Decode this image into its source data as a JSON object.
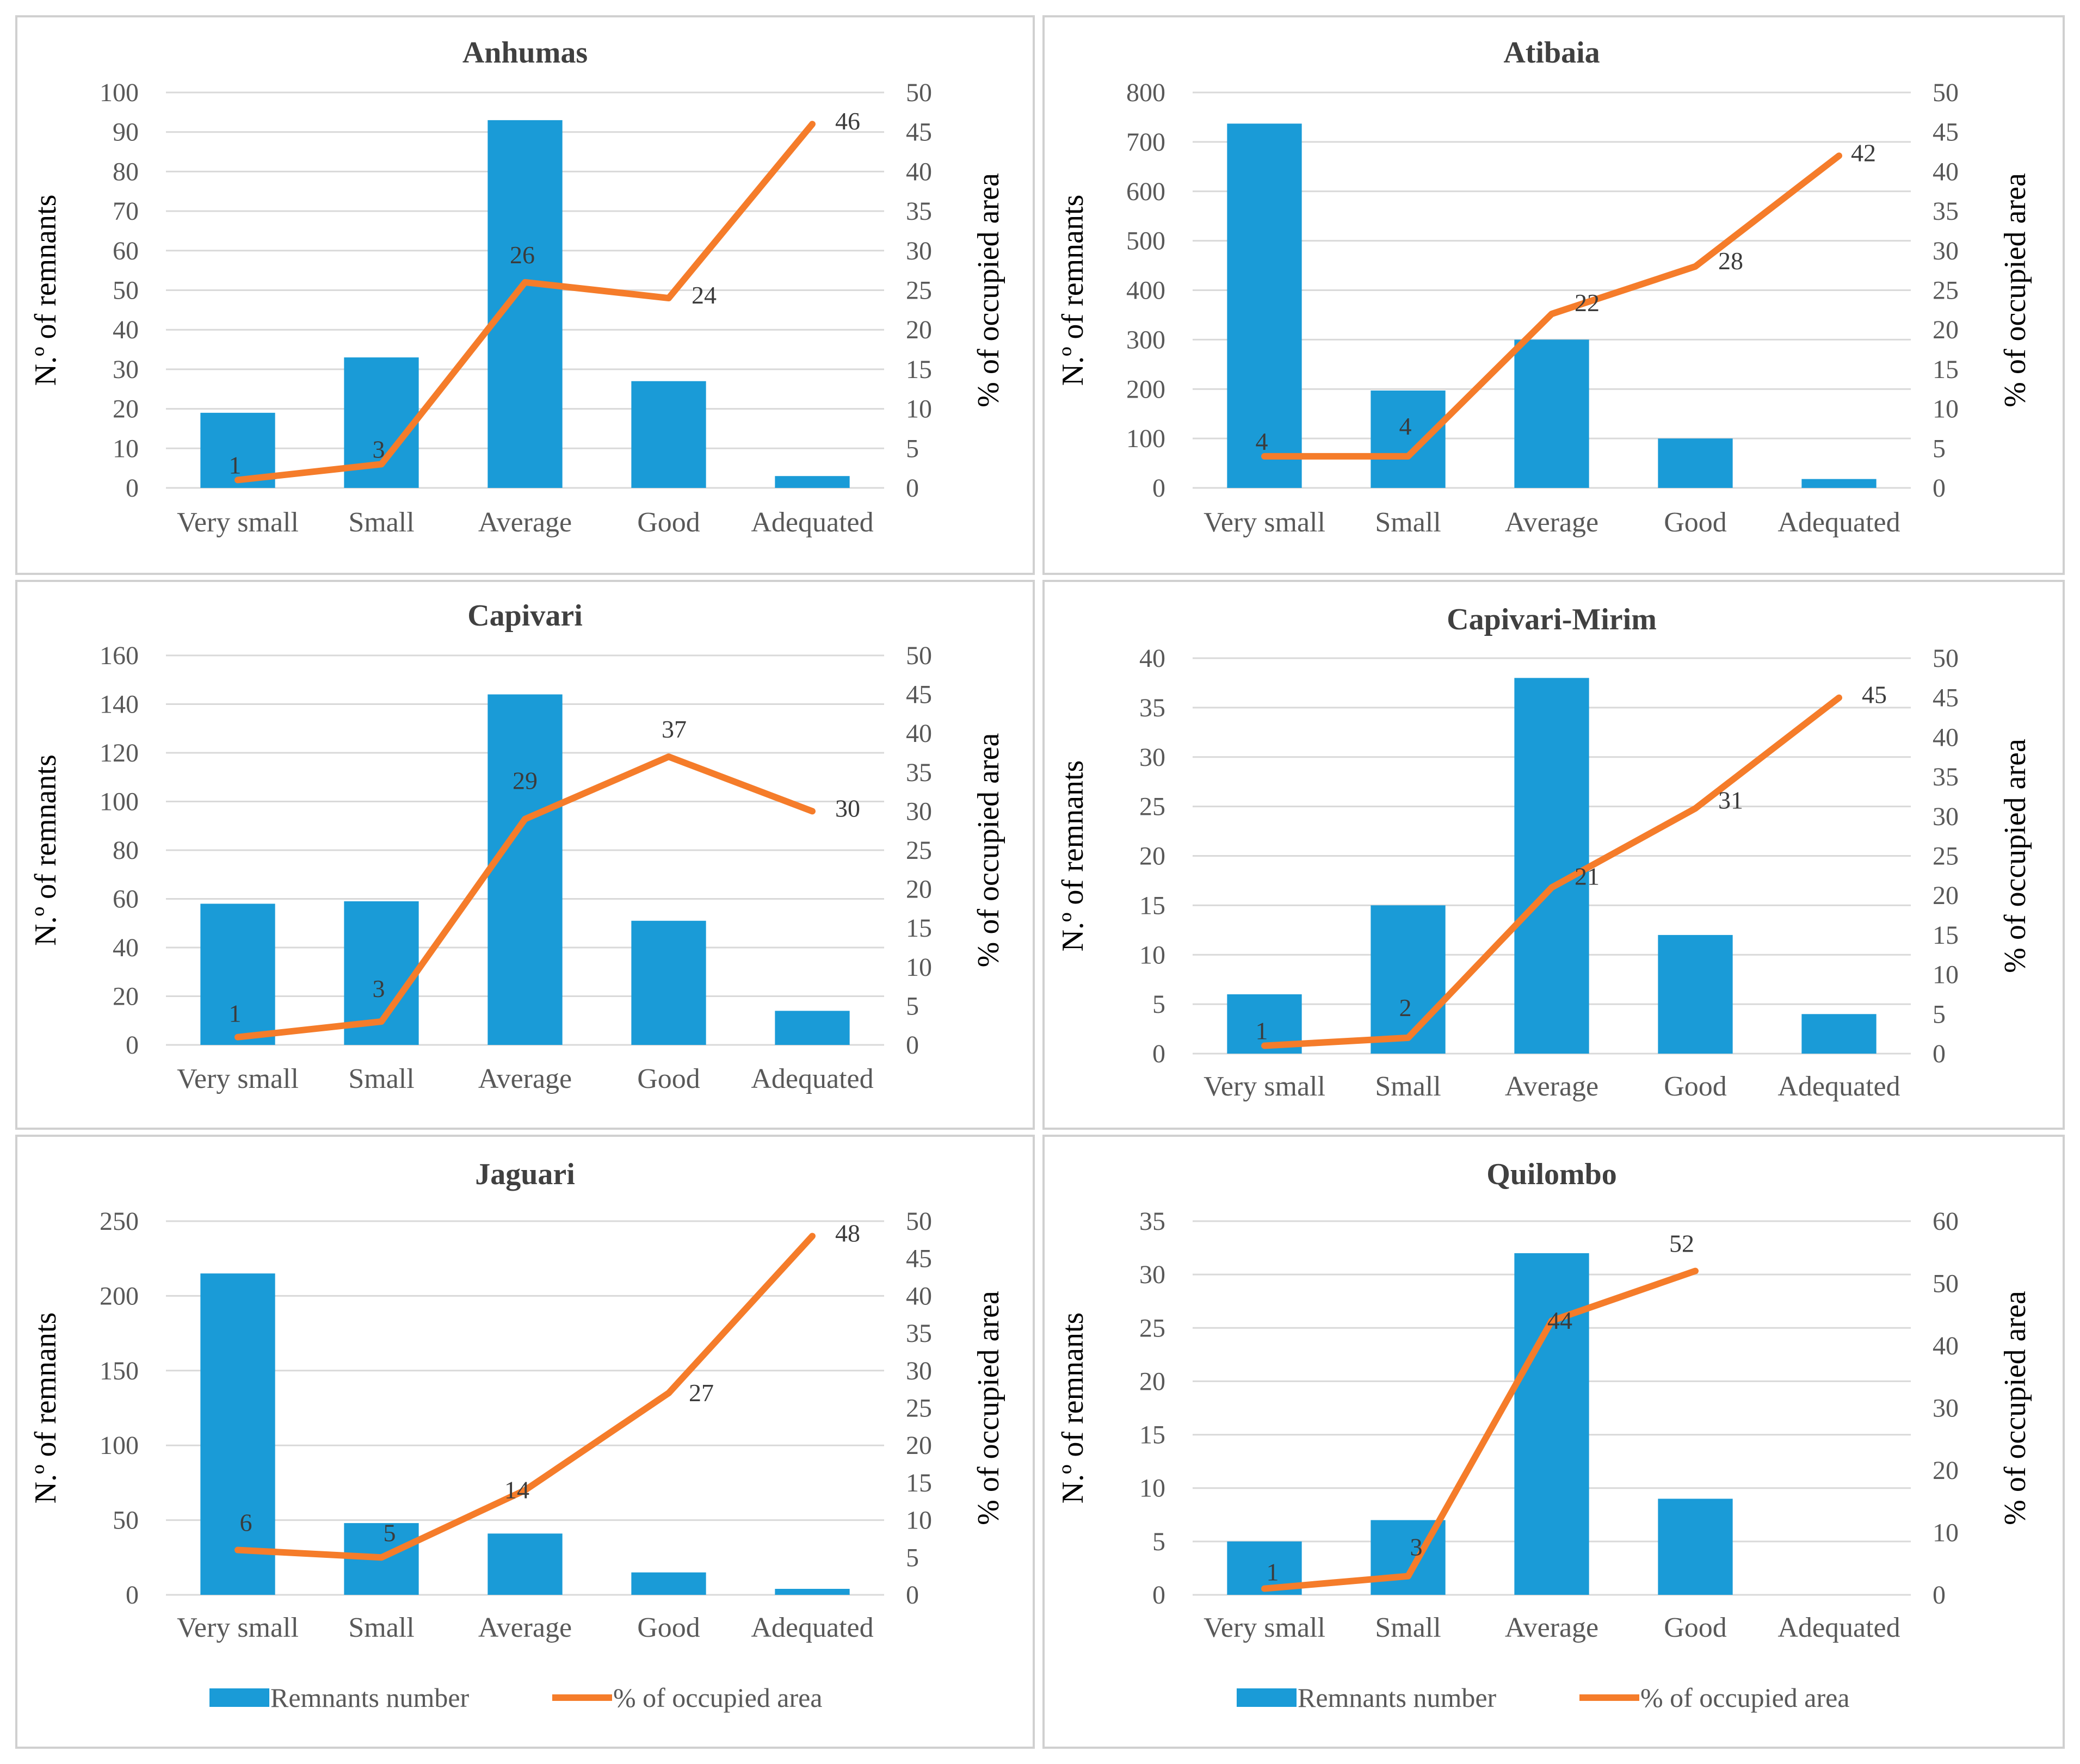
{
  "colors": {
    "bar": "#1a9bd7",
    "line": "#f57c2a",
    "grid": "#d9d9d9",
    "frame": "#d0d0d0",
    "axis_text": "#595959",
    "title_text": "#404040",
    "label_text": "#3b3b3b",
    "ylabel_text": "#000000"
  },
  "legend": {
    "bar_label": "Remnants number",
    "line_label": "% of occupied area"
  },
  "chart_data": [
    {
      "type": "bar",
      "title": "Anhumas",
      "categories": [
        "Very small",
        "Small",
        "Average",
        "Good",
        "Adequated"
      ],
      "ylabel": "N.º of remnants",
      "y2label": "% of occupied area",
      "ylim": [
        0,
        100
      ],
      "yticks": [
        0,
        10,
        20,
        30,
        40,
        50,
        60,
        70,
        80,
        90,
        100
      ],
      "y2lim": [
        0,
        50
      ],
      "y2ticks": [
        0,
        5,
        10,
        15,
        20,
        25,
        30,
        35,
        40,
        45,
        50
      ],
      "series": [
        {
          "name": "Remnants number",
          "kind": "bar",
          "axis": "left",
          "values": [
            19,
            33,
            93,
            27,
            3
          ]
        },
        {
          "name": "% of occupied area",
          "kind": "line",
          "axis": "right",
          "values": [
            1,
            3,
            26,
            24,
            46
          ],
          "labels": [
            "1",
            "3",
            "26",
            "24",
            "46"
          ]
        }
      ],
      "legend": false
    },
    {
      "type": "bar",
      "title": "Atibaia",
      "categories": [
        "Very small",
        "Small",
        "Average",
        "Good",
        "Adequated"
      ],
      "ylabel": "N.º of remnants",
      "y2label": "% of occupied area",
      "ylim": [
        0,
        800
      ],
      "yticks": [
        0,
        100,
        200,
        300,
        400,
        500,
        600,
        700,
        800
      ],
      "y2lim": [
        0,
        50
      ],
      "y2ticks": [
        0,
        5,
        10,
        15,
        20,
        25,
        30,
        35,
        40,
        45,
        50
      ],
      "series": [
        {
          "name": "Remnants number",
          "kind": "bar",
          "axis": "left",
          "values": [
            737,
            197,
            300,
            100,
            18
          ]
        },
        {
          "name": "% of occupied area",
          "kind": "line",
          "axis": "right",
          "values": [
            4,
            4,
            22,
            28,
            42
          ],
          "labels": [
            "4",
            "4",
            "22",
            "28",
            "42"
          ]
        }
      ],
      "legend": false
    },
    {
      "type": "bar",
      "title": "Capivari",
      "categories": [
        "Very small",
        "Small",
        "Average",
        "Good",
        "Adequated"
      ],
      "ylabel": "N.º of remnants",
      "y2label": "% of occupied area",
      "ylim": [
        0,
        160
      ],
      "yticks": [
        0,
        20,
        40,
        60,
        80,
        100,
        120,
        140,
        160
      ],
      "y2lim": [
        0,
        50
      ],
      "y2ticks": [
        0,
        5,
        10,
        15,
        20,
        25,
        30,
        35,
        40,
        45,
        50
      ],
      "series": [
        {
          "name": "Remnants number",
          "kind": "bar",
          "axis": "left",
          "values": [
            58,
            59,
            144,
            51,
            14
          ]
        },
        {
          "name": "% of occupied area",
          "kind": "line",
          "axis": "right",
          "values": [
            1,
            3,
            29,
            37,
            30
          ],
          "labels": [
            "1",
            "3",
            "29",
            "37",
            "30"
          ]
        }
      ],
      "legend": false
    },
    {
      "type": "bar",
      "title": "Capivari-Mirim",
      "categories": [
        "Very small",
        "Small",
        "Average",
        "Good",
        "Adequated"
      ],
      "ylabel": "N.º of remnants",
      "y2label": "% of occupied area",
      "ylim": [
        0,
        40
      ],
      "yticks": [
        0,
        5,
        10,
        15,
        20,
        25,
        30,
        35,
        40
      ],
      "y2lim": [
        0,
        50
      ],
      "y2ticks": [
        0,
        5,
        10,
        15,
        20,
        25,
        30,
        35,
        40,
        45,
        50
      ],
      "series": [
        {
          "name": "Remnants number",
          "kind": "bar",
          "axis": "left",
          "values": [
            6,
            15,
            38,
            12,
            4
          ]
        },
        {
          "name": "% of occupied area",
          "kind": "line",
          "axis": "right",
          "values": [
            1,
            2,
            21,
            31,
            45
          ],
          "labels": [
            "1",
            "2",
            "21",
            "31",
            "45"
          ]
        }
      ],
      "legend": false
    },
    {
      "type": "bar",
      "title": "Jaguari",
      "categories": [
        "Very small",
        "Small",
        "Average",
        "Good",
        "Adequated"
      ],
      "ylabel": "N.º of remnants",
      "y2label": "% of occupied area",
      "ylim": [
        0,
        250
      ],
      "yticks": [
        0,
        50,
        100,
        150,
        200,
        250
      ],
      "y2lim": [
        0,
        50
      ],
      "y2ticks": [
        0,
        5,
        10,
        15,
        20,
        25,
        30,
        35,
        40,
        45,
        50
      ],
      "series": [
        {
          "name": "Remnants number",
          "kind": "bar",
          "axis": "left",
          "values": [
            215,
            48,
            41,
            15,
            4
          ]
        },
        {
          "name": "% of occupied area",
          "kind": "line",
          "axis": "right",
          "values": [
            6,
            5,
            14,
            27,
            48
          ],
          "labels": [
            "6",
            "5",
            "14",
            "27",
            "48"
          ]
        }
      ],
      "legend": true
    },
    {
      "type": "bar",
      "title": "Quilombo",
      "categories": [
        "Very small",
        "Small",
        "Average",
        "Good",
        "Adequated"
      ],
      "ylabel": "N.º of remnants",
      "y2label": "% of occupied area",
      "ylim": [
        0,
        35
      ],
      "yticks": [
        0,
        5,
        10,
        15,
        20,
        25,
        30,
        35
      ],
      "y2lim": [
        0,
        60
      ],
      "y2ticks": [
        0,
        10,
        20,
        30,
        40,
        50,
        60
      ],
      "series": [
        {
          "name": "Remnants number",
          "kind": "bar",
          "axis": "left",
          "values": [
            5,
            7,
            32,
            9,
            null
          ]
        },
        {
          "name": "% of occupied area",
          "kind": "line",
          "axis": "right",
          "values": [
            1,
            3,
            44,
            52,
            null
          ],
          "labels": [
            "1",
            "3",
            "44",
            "52",
            null
          ]
        }
      ],
      "legend": true
    }
  ]
}
